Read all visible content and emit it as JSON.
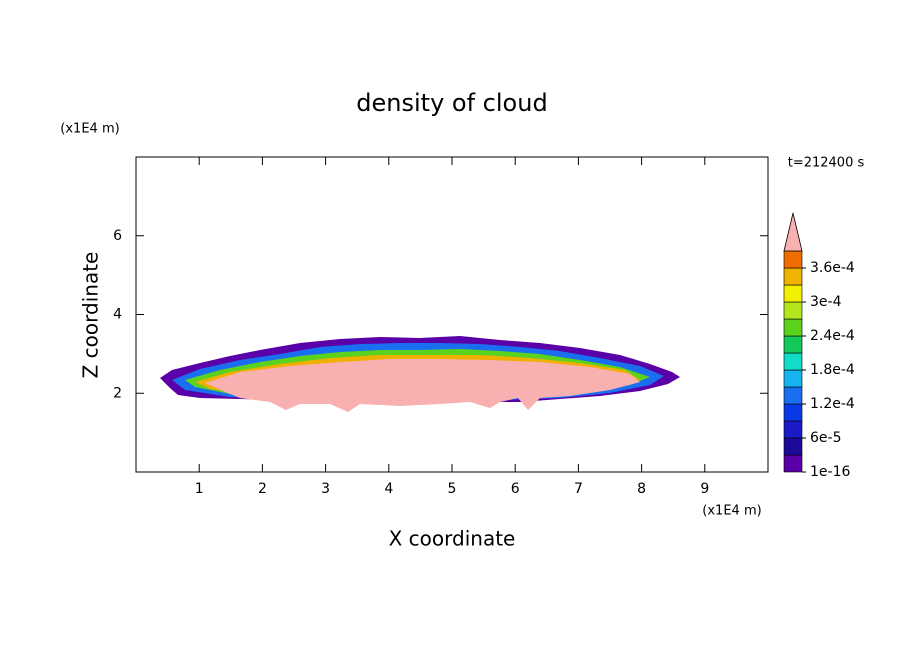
{
  "chart_data": {
    "type": "contour",
    "title": "density of cloud",
    "x_label": "X coordinate",
    "y_label": "Z coordinate",
    "x_unit": "(x1E4 m)",
    "y_unit": "(x1E4 m)",
    "time_label": "t=212400 s",
    "xlim": [
      0,
      10
    ],
    "ylim": [
      0,
      8
    ],
    "xticks": [
      1,
      2,
      3,
      4,
      5,
      6,
      7,
      8,
      9
    ],
    "yticks": [
      2,
      4,
      6
    ],
    "colorbar": {
      "levels": [
        1e-16,
        3e-05,
        6e-05,
        9e-05,
        0.00012,
        0.00015,
        0.00018,
        0.00021,
        0.00024,
        0.00027,
        0.0003,
        0.00033,
        0.00036,
        0.00039
      ],
      "colors": [
        "#5a00a8",
        "#1c0a9a",
        "#1a1ac8",
        "#0a3ae8",
        "#1a6ef0",
        "#14b4f0",
        "#10dcc8",
        "#14c85a",
        "#5ad21e",
        "#b4e61e",
        "#f0f000",
        "#f0b400",
        "#f06e00",
        "#f02828"
      ],
      "ticks": [
        {
          "value": 1e-16,
          "label": "1e-16"
        },
        {
          "value": 6e-05,
          "label": "6e-5"
        },
        {
          "value": 0.00012,
          "label": "1.2e-4"
        },
        {
          "value": 0.00018,
          "label": "1.8e-4"
        },
        {
          "value": 0.00024,
          "label": "2.4e-4"
        },
        {
          "value": 0.0003,
          "label": "3e-4"
        },
        {
          "value": 0.00036,
          "label": "3.6e-4"
        }
      ],
      "over_color": "#f8b0b0"
    }
  }
}
